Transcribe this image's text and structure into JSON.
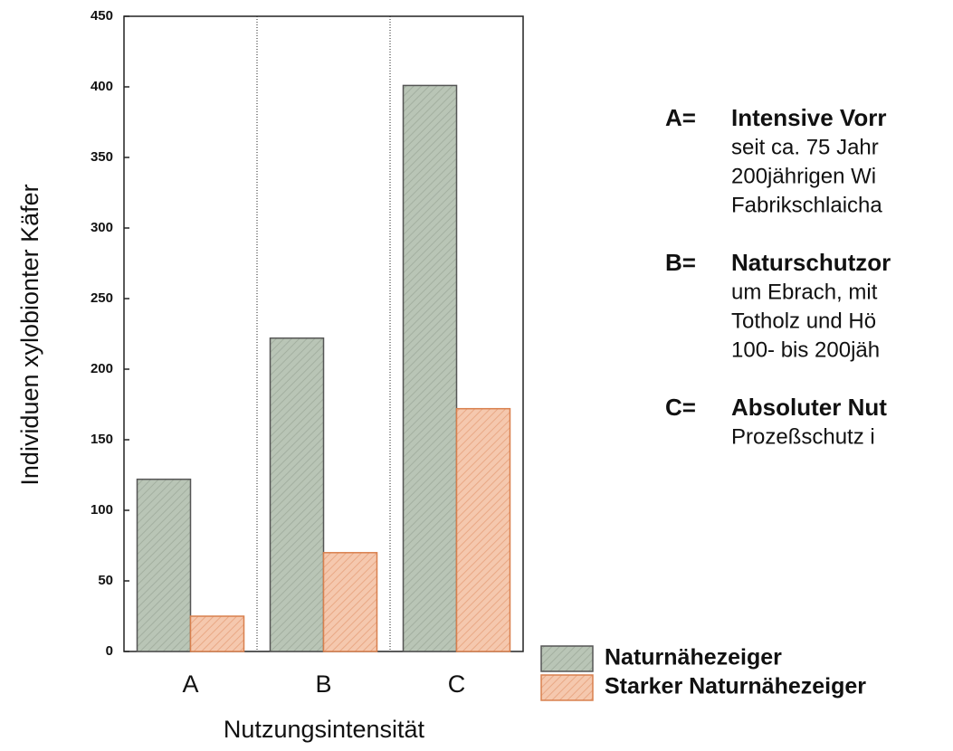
{
  "chart_data": {
    "type": "bar",
    "categories": [
      "A",
      "B",
      "C"
    ],
    "series": [
      {
        "name": "Naturnähezeiger",
        "color": "#b9c5b6",
        "values": [
          122,
          222,
          401
        ]
      },
      {
        "name": "Starker Naturnähezeiger",
        "color": "#f5c8ae",
        "values": [
          25,
          70,
          172
        ]
      }
    ],
    "ylim": [
      0,
      450
    ],
    "yticks": [
      0,
      50,
      100,
      150,
      200,
      250,
      300,
      350,
      400,
      450
    ],
    "ylabel": "Individuen xylobionter Käfer",
    "xlabel": "Nutzungsintensität",
    "annotations": [
      {
        "key": "A=",
        "lines": [
          "Intensive Vorr",
          "seit ca. 75 Jahr",
          "200jährigen Wi",
          "Fabrikschlaicha"
        ]
      },
      {
        "key": "B=",
        "lines": [
          "Naturschutzor",
          "um Ebrach, mit",
          "Totholz und Hö",
          "100- bis 200jäh"
        ]
      },
      {
        "key": "C=",
        "lines": [
          "Absoluter Nut",
          "Prozeßschutz i"
        ]
      }
    ]
  }
}
